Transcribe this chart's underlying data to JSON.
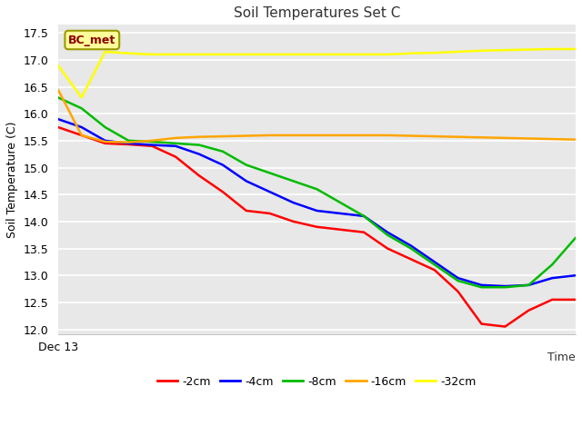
{
  "title": "Soil Temperatures Set C",
  "xlabel": "Time",
  "ylabel": "Soil Temperature (C)",
  "annotation_text": "BC_met",
  "annotation_color": "#8B0000",
  "annotation_bg": "#FFFF99",
  "annotation_border": "#999900",
  "ylim": [
    11.9,
    17.65
  ],
  "yticks": [
    12.0,
    12.5,
    13.0,
    13.5,
    14.0,
    14.5,
    15.0,
    15.5,
    16.0,
    16.5,
    17.0,
    17.5
  ],
  "xlim": [
    0,
    22
  ],
  "x_label_text": "Dec 13",
  "fig_bg": "#FFFFFF",
  "plot_bg": "#E8E8E8",
  "grid_color": "#FFFFFF",
  "series": {
    "-2cm": {
      "color": "#FF0000",
      "x": [
        0,
        1,
        2,
        3,
        4,
        5,
        6,
        7,
        8,
        9,
        10,
        11,
        12,
        13,
        14,
        15,
        16,
        17,
        18,
        19,
        20,
        21,
        22
      ],
      "y": [
        15.75,
        15.6,
        15.45,
        15.43,
        15.4,
        15.2,
        14.85,
        14.55,
        14.2,
        14.15,
        14.0,
        13.9,
        13.85,
        13.8,
        13.5,
        13.3,
        13.1,
        12.7,
        12.1,
        12.05,
        12.35,
        12.55,
        12.55
      ]
    },
    "-4cm": {
      "color": "#0000FF",
      "x": [
        0,
        1,
        2,
        3,
        4,
        5,
        6,
        7,
        8,
        9,
        10,
        11,
        12,
        13,
        14,
        15,
        16,
        17,
        18,
        19,
        20,
        21,
        22
      ],
      "y": [
        15.9,
        15.75,
        15.5,
        15.45,
        15.42,
        15.4,
        15.25,
        15.05,
        14.75,
        14.55,
        14.35,
        14.2,
        14.15,
        14.1,
        13.8,
        13.55,
        13.25,
        12.95,
        12.82,
        12.8,
        12.82,
        12.95,
        13.0
      ]
    },
    "-8cm": {
      "color": "#00BB00",
      "x": [
        0,
        1,
        2,
        3,
        4,
        5,
        6,
        7,
        8,
        9,
        10,
        11,
        12,
        13,
        14,
        15,
        16,
        17,
        18,
        19,
        20,
        21,
        22
      ],
      "y": [
        16.3,
        16.1,
        15.75,
        15.5,
        15.48,
        15.45,
        15.42,
        15.3,
        15.05,
        14.9,
        14.75,
        14.6,
        14.35,
        14.1,
        13.75,
        13.5,
        13.2,
        12.9,
        12.78,
        12.78,
        12.82,
        13.2,
        13.7
      ]
    },
    "-16cm": {
      "color": "#FFA500",
      "x": [
        0,
        1,
        2,
        3,
        4,
        5,
        6,
        7,
        8,
        9,
        10,
        11,
        12,
        13,
        14,
        15,
        16,
        17,
        18,
        19,
        20,
        21,
        22
      ],
      "y": [
        16.45,
        15.6,
        15.48,
        15.47,
        15.5,
        15.55,
        15.57,
        15.58,
        15.59,
        15.6,
        15.6,
        15.6,
        15.6,
        15.6,
        15.6,
        15.59,
        15.58,
        15.57,
        15.56,
        15.55,
        15.54,
        15.53,
        15.52
      ]
    },
    "-32cm": {
      "color": "#FFFF00",
      "x": [
        0,
        1,
        2,
        3,
        4,
        5,
        6,
        7,
        8,
        9,
        10,
        11,
        12,
        13,
        14,
        15,
        16,
        17,
        18,
        19,
        20,
        21,
        22
      ],
      "y": [
        16.9,
        16.3,
        17.15,
        17.12,
        17.1,
        17.1,
        17.1,
        17.1,
        17.1,
        17.1,
        17.1,
        17.1,
        17.1,
        17.1,
        17.1,
        17.12,
        17.13,
        17.15,
        17.17,
        17.18,
        17.19,
        17.2,
        17.2
      ]
    }
  },
  "legend_order": [
    "-2cm",
    "-4cm",
    "-8cm",
    "-16cm",
    "-32cm"
  ],
  "legend_colors": [
    "#FF0000",
    "#0000FF",
    "#00BB00",
    "#FFA500",
    "#FFFF00"
  ]
}
